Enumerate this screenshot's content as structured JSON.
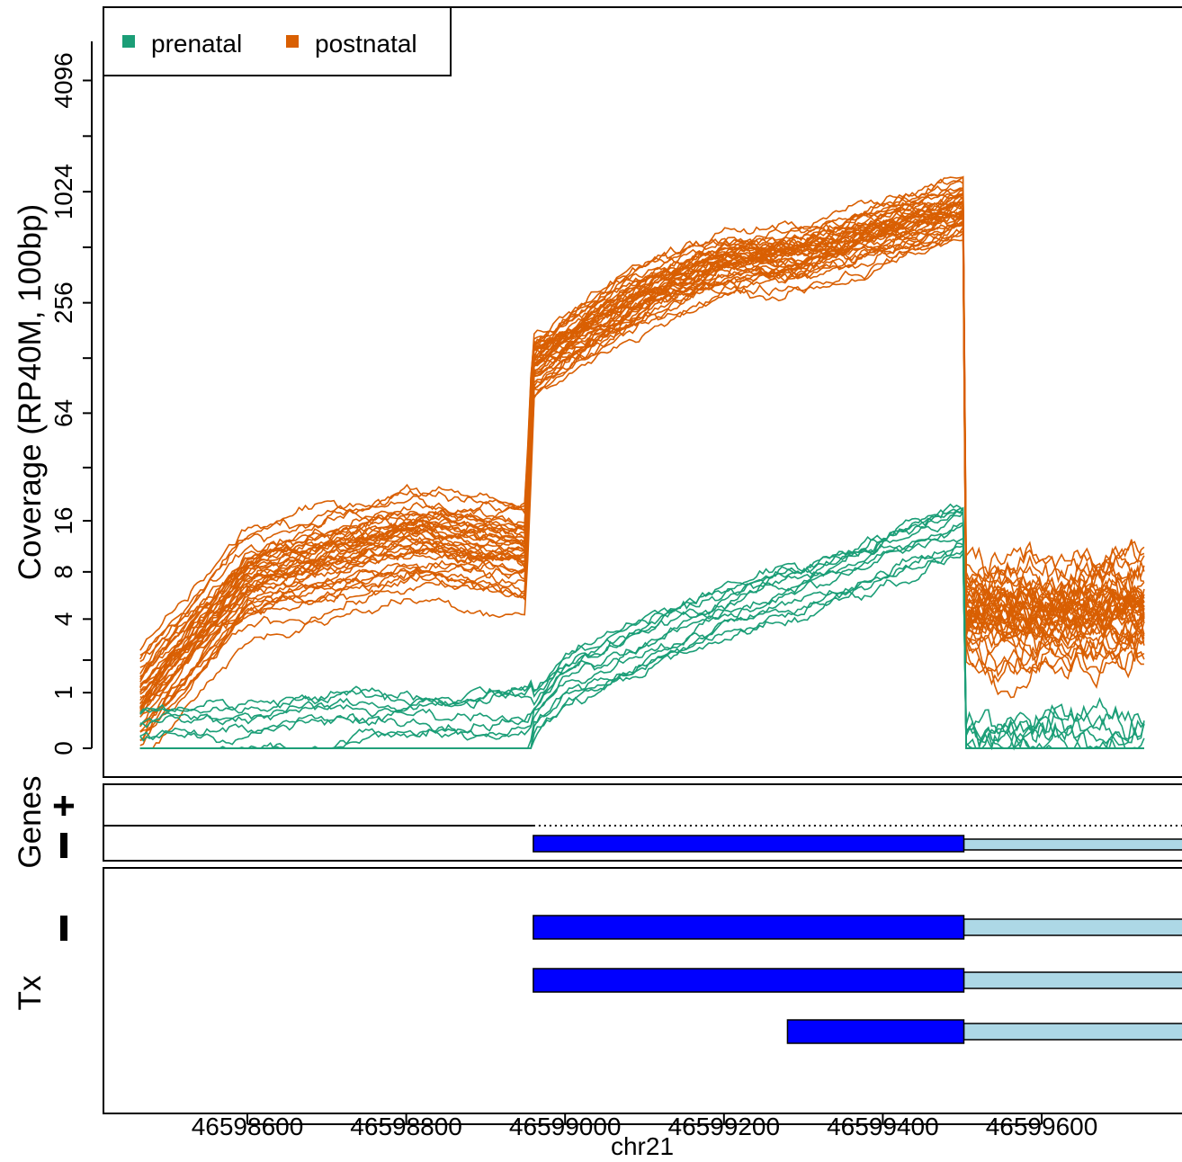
{
  "chart_data": {
    "type": "line",
    "title": "",
    "xlabel": "chr21",
    "ylabel": "Coverage (RP40M, 100bp)",
    "x_ticks": [
      46598600,
      46598800,
      46599000,
      46599200,
      46599400,
      46599600
    ],
    "x_range": [
      46598420,
      46599860
    ],
    "y_scale": "log2(y+1)",
    "y_ticks": [
      0,
      1,
      4,
      8,
      16,
      64,
      256,
      1024,
      4096
    ],
    "y_range": [
      0,
      12.8
    ],
    "legend": {
      "placement": "top-left",
      "entries": [
        {
          "name": "prenatal",
          "color": "#1b9e77"
        },
        {
          "name": "postnatal",
          "color": "#d95f02"
        }
      ]
    },
    "region": {
      "start": 46598465,
      "end": 46599730,
      "exon_end": 46599502
    },
    "series_summary": [
      {
        "name": "prenatal",
        "color": "#1b9e77",
        "sample_count": 12,
        "control_points_x": [
          46598465,
          46598600,
          46598800,
          46598950,
          46599000,
          46599100,
          46599200,
          46599300,
          46599400,
          46599502,
          46599503,
          46599730
        ],
        "median_coverage": [
          0.1,
          0.2,
          0.4,
          0.5,
          1.5,
          3,
          5,
          7,
          11,
          16,
          0.05,
          0.05
        ]
      },
      {
        "name": "postnatal",
        "color": "#d95f02",
        "sample_count": 40,
        "control_points_x": [
          46598465,
          46598600,
          46598800,
          46598950,
          46598960,
          46599100,
          46599200,
          46599300,
          46599400,
          46599502,
          46599503,
          46599730
        ],
        "median_coverage": [
          1,
          8,
          14,
          12,
          130,
          300,
          450,
          500,
          650,
          900,
          5,
          5
        ]
      }
    ]
  },
  "panels": {
    "genes": {
      "label": "Genes",
      "plus_strand": "+",
      "minus_strand": "–",
      "features": [
        {
          "strand": "-",
          "coding_start": 46598960,
          "coding_end": 46599502,
          "utr_end": 46599860
        }
      ]
    },
    "tx": {
      "label": "Tx",
      "minus_strand": "–",
      "features": [
        {
          "strand": "-",
          "coding_start": 46598960,
          "coding_end": 46599502,
          "utr_end": 46599860
        },
        {
          "strand": "-",
          "coding_start": 46598960,
          "coding_end": 46599502,
          "utr_end": 46599860
        },
        {
          "strand": "-",
          "coding_start": 46599280,
          "coding_end": 46599502,
          "utr_end": 46599860
        }
      ]
    }
  },
  "colors": {
    "prenatal": "#1b9e77",
    "postnatal": "#d95f02",
    "coding": "#0000ff",
    "utr": "#add8e6"
  }
}
